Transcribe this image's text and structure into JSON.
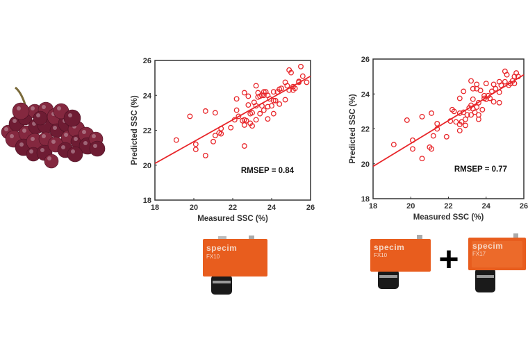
{
  "colors": {
    "marker": "#e8262a",
    "axis": "#333333",
    "camera": "#e85d1e",
    "grape": "#7a2036"
  },
  "cameras": [
    {
      "brand": "specim",
      "model": "FX10"
    },
    {
      "brand": "specim",
      "model": "FX10"
    },
    {
      "brand": "specim",
      "model": "FX17"
    }
  ],
  "plus_sign": "+",
  "chart_data": [
    {
      "type": "scatter",
      "title": "",
      "xlabel": "Measured SSC (%)",
      "ylabel": "Predicted SSC (%)",
      "xlim": [
        18,
        26
      ],
      "ylim": [
        18,
        26
      ],
      "xticks": [
        "18",
        "20",
        "22",
        "24",
        "26"
      ],
      "yticks": [
        "18",
        "20",
        "22",
        "24",
        "26"
      ],
      "annotation": "RMSEP = 0.84",
      "fit_line": [
        [
          18,
          20.1
        ],
        [
          26,
          25.1
        ]
      ],
      "points": [
        [
          19.1,
          21.44
        ],
        [
          19.8,
          22.8
        ],
        [
          20.1,
          21.2
        ],
        [
          20.1,
          20.9
        ],
        [
          20.6,
          23.1
        ],
        [
          20.6,
          20.55
        ],
        [
          21.1,
          23.0
        ],
        [
          21.0,
          21.35
        ],
        [
          21.1,
          21.7
        ],
        [
          21.3,
          21.85
        ],
        [
          21.4,
          22.1
        ],
        [
          21.4,
          21.8
        ],
        [
          21.9,
          22.15
        ],
        [
          22.1,
          22.6
        ],
        [
          22.2,
          23.15
        ],
        [
          22.2,
          23.8
        ],
        [
          22.3,
          22.8
        ],
        [
          22.5,
          22.55
        ],
        [
          22.6,
          24.15
        ],
        [
          22.6,
          22.6
        ],
        [
          22.6,
          22.3
        ],
        [
          22.6,
          21.1
        ],
        [
          22.7,
          22.55
        ],
        [
          22.8,
          23.95
        ],
        [
          22.8,
          23.45
        ],
        [
          22.9,
          22.95
        ],
        [
          22.9,
          22.4
        ],
        [
          23.0,
          22.25
        ],
        [
          23.0,
          23.0
        ],
        [
          23.1,
          23.6
        ],
        [
          23.2,
          24.55
        ],
        [
          23.2,
          23.4
        ],
        [
          23.2,
          22.6
        ],
        [
          23.3,
          24.15
        ],
        [
          23.3,
          23.9
        ],
        [
          23.4,
          22.95
        ],
        [
          23.4,
          23.95
        ],
        [
          23.5,
          23.4
        ],
        [
          23.5,
          24.0
        ],
        [
          23.6,
          24.2
        ],
        [
          23.6,
          23.15
        ],
        [
          23.6,
          24.0
        ],
        [
          23.7,
          24.2
        ],
        [
          23.8,
          22.65
        ],
        [
          23.8,
          24.0
        ],
        [
          23.8,
          23.35
        ],
        [
          23.9,
          23.8
        ],
        [
          24.0,
          23.4
        ],
        [
          24.1,
          23.7
        ],
        [
          24.1,
          22.95
        ],
        [
          24.1,
          24.2
        ],
        [
          24.2,
          23.7
        ],
        [
          24.3,
          24.2
        ],
        [
          24.4,
          24.35
        ],
        [
          24.4,
          23.5
        ],
        [
          24.5,
          24.4
        ],
        [
          24.7,
          24.75
        ],
        [
          24.7,
          23.75
        ],
        [
          24.8,
          24.55
        ],
        [
          24.9,
          24.3
        ],
        [
          24.9,
          25.45
        ],
        [
          25.0,
          25.3
        ],
        [
          25.1,
          24.3
        ],
        [
          25.1,
          24.5
        ],
        [
          25.2,
          24.4
        ],
        [
          25.4,
          24.75
        ],
        [
          25.4,
          24.8
        ],
        [
          25.5,
          25.65
        ],
        [
          25.6,
          25.1
        ],
        [
          25.8,
          24.75
        ]
      ]
    },
    {
      "type": "scatter",
      "title": "",
      "xlabel": "Measured SSC (%)",
      "ylabel": "Predicted SSC (%)",
      "xlim": [
        18,
        26
      ],
      "ylim": [
        18,
        26
      ],
      "xticks": [
        "18",
        "20",
        "22",
        "24",
        "26"
      ],
      "yticks": [
        "18",
        "20",
        "22",
        "24",
        "26"
      ],
      "annotation": "RMSEP = 0.77",
      "fit_line": [
        [
          18,
          19.85
        ],
        [
          26,
          25.1
        ]
      ],
      "points": [
        [
          19.1,
          21.1
        ],
        [
          19.8,
          22.5
        ],
        [
          20.1,
          21.35
        ],
        [
          20.1,
          20.85
        ],
        [
          20.6,
          22.7
        ],
        [
          20.6,
          20.3
        ],
        [
          21.0,
          20.95
        ],
        [
          21.1,
          20.85
        ],
        [
          21.1,
          22.9
        ],
        [
          21.2,
          21.6
        ],
        [
          21.4,
          22.0
        ],
        [
          21.4,
          22.3
        ],
        [
          21.9,
          21.55
        ],
        [
          22.1,
          22.45
        ],
        [
          22.2,
          23.1
        ],
        [
          22.3,
          23.0
        ],
        [
          22.4,
          22.4
        ],
        [
          22.6,
          23.75
        ],
        [
          22.6,
          22.9
        ],
        [
          22.6,
          22.25
        ],
        [
          22.6,
          21.9
        ],
        [
          22.7,
          22.4
        ],
        [
          22.8,
          24.15
        ],
        [
          22.8,
          22.95
        ],
        [
          22.9,
          22.55
        ],
        [
          22.9,
          22.2
        ],
        [
          23.0,
          22.8
        ],
        [
          23.1,
          23.2
        ],
        [
          23.2,
          24.75
        ],
        [
          23.2,
          22.8
        ],
        [
          23.2,
          23.35
        ],
        [
          23.3,
          24.3
        ],
        [
          23.3,
          23.7
        ],
        [
          23.3,
          23.15
        ],
        [
          23.4,
          22.95
        ],
        [
          23.5,
          24.55
        ],
        [
          23.5,
          24.3
        ],
        [
          23.5,
          23.25
        ],
        [
          23.6,
          22.8
        ],
        [
          23.6,
          22.55
        ],
        [
          23.6,
          23.5
        ],
        [
          23.7,
          24.2
        ],
        [
          23.8,
          23.1
        ],
        [
          23.9,
          23.75
        ],
        [
          23.9,
          23.9
        ],
        [
          24.0,
          24.6
        ],
        [
          24.0,
          23.7
        ],
        [
          24.1,
          23.9
        ],
        [
          24.2,
          23.75
        ],
        [
          24.3,
          24.15
        ],
        [
          24.4,
          24.55
        ],
        [
          24.4,
          23.55
        ],
        [
          24.5,
          24.3
        ],
        [
          24.7,
          24.7
        ],
        [
          24.7,
          24.1
        ],
        [
          24.7,
          23.5
        ],
        [
          24.8,
          24.5
        ],
        [
          25.0,
          25.3
        ],
        [
          25.0,
          24.7
        ],
        [
          25.1,
          25.1
        ],
        [
          25.2,
          24.5
        ],
        [
          25.3,
          24.6
        ],
        [
          25.4,
          24.75
        ],
        [
          25.5,
          25.0
        ],
        [
          25.5,
          24.6
        ],
        [
          25.6,
          25.2
        ],
        [
          25.7,
          25.0
        ]
      ]
    }
  ]
}
